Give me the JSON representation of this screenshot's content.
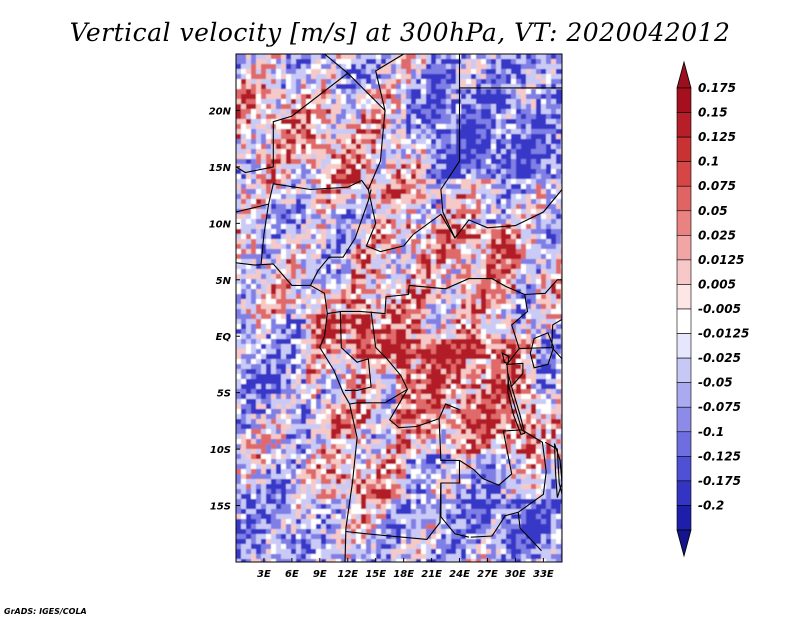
{
  "title": "Vertical velocity [m/s] at 300hPa, VT: 2020042012",
  "credit": "GrADS: IGES/COLA",
  "map": {
    "lon_range": [
      0,
      35
    ],
    "lat_range": [
      -20,
      25
    ],
    "x_ticks": [
      {
        "value": 3,
        "label": "3E"
      },
      {
        "value": 6,
        "label": "6E"
      },
      {
        "value": 9,
        "label": "9E"
      },
      {
        "value": 12,
        "label": "12E"
      },
      {
        "value": 15,
        "label": "15E"
      },
      {
        "value": 18,
        "label": "18E"
      },
      {
        "value": 21,
        "label": "21E"
      },
      {
        "value": 24,
        "label": "24E"
      },
      {
        "value": 27,
        "label": "27E"
      },
      {
        "value": 30,
        "label": "30E"
      },
      {
        "value": 33,
        "label": "33E"
      }
    ],
    "y_ticks": [
      {
        "value": 20,
        "label": "20N"
      },
      {
        "value": 15,
        "label": "15N"
      },
      {
        "value": 10,
        "label": "10N"
      },
      {
        "value": 5,
        "label": "5N"
      },
      {
        "value": 0,
        "label": "EQ"
      },
      {
        "value": -5,
        "label": "5S"
      },
      {
        "value": -10,
        "label": "10S"
      },
      {
        "value": -15,
        "label": "15S"
      }
    ],
    "palette": {
      "strong_up": "#b21e28",
      "up": "#e06a6a",
      "weak_up": "#f6c9c6",
      "neutral": "#ffffff",
      "weak_down": "#c9cbf6",
      "down": "#7f7fe6",
      "strong_down": "#3838c8",
      "boundary": "#000000"
    }
  },
  "colorbar": {
    "levels": [
      {
        "label": "0.175",
        "color": "#a50f1e"
      },
      {
        "label": "0.15",
        "color": "#b61e28"
      },
      {
        "label": "0.125",
        "color": "#c83232"
      },
      {
        "label": "0.1",
        "color": "#d74646"
      },
      {
        "label": "0.075",
        "color": "#e06464"
      },
      {
        "label": "0.05",
        "color": "#ea8282"
      },
      {
        "label": "0.025",
        "color": "#f2a5a5"
      },
      {
        "label": "0.0125",
        "color": "#f8c8c8"
      },
      {
        "label": "0.005",
        "color": "#fce6e6"
      },
      {
        "label": "-0.005",
        "color": "#ffffff"
      },
      {
        "label": "-0.0125",
        "color": "#e6e6fc"
      },
      {
        "label": "-0.025",
        "color": "#c8c8f6"
      },
      {
        "label": "-0.05",
        "color": "#aaaaf0"
      },
      {
        "label": "-0.075",
        "color": "#8c8ce8"
      },
      {
        "label": "-0.1",
        "color": "#6e6ee0"
      },
      {
        "label": "-0.125",
        "color": "#5050d6"
      },
      {
        "label": "-0.175",
        "color": "#3434c4"
      },
      {
        "label": "-0.2",
        "color": "#1e1eaa"
      }
    ],
    "top_cap_color": "#9b0f1e",
    "bottom_cap_color": "#14148c"
  }
}
